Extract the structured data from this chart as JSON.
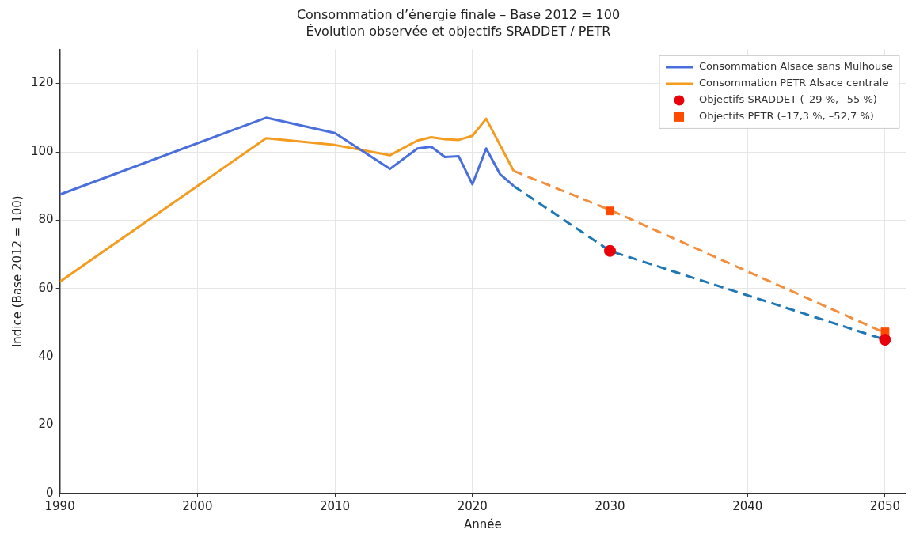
{
  "chart_data": {
    "type": "line",
    "title": "Consommation d’énergie finale – Base 2012 = 100",
    "subtitle": "Évolution observée et objectifs SRADDET / PETR",
    "xlabel": "Année",
    "ylabel": "Indice (Base 2012 = 100)",
    "xlim": [
      1990,
      2051.5
    ],
    "xticks": [
      1990,
      2000,
      2010,
      2020,
      2030,
      2040,
      2050
    ],
    "ylim": [
      0,
      130
    ],
    "yticks": [
      0,
      20,
      40,
      60,
      80,
      100,
      120
    ],
    "grid": true,
    "legend": "top right",
    "series": [
      {
        "name": "Consommation Alsace sans Mulhouse",
        "type": "line",
        "color": "#4a6fdc",
        "line_style": "solid",
        "marker": "none",
        "x": [
          1990,
          2005,
          2010,
          2014,
          2016,
          2017,
          2018,
          2019,
          2020,
          2021,
          2022,
          2023
        ],
        "values": [
          87.5,
          110,
          105.5,
          95,
          101,
          101.5,
          98.5,
          98.7,
          90.5,
          101,
          93.5,
          90
        ]
      },
      {
        "name": "Consommation PETR Alsace centrale",
        "type": "line",
        "color": "#f39c1f",
        "line_style": "solid",
        "marker": "none",
        "x": [
          1990,
          2005,
          2010,
          2014,
          2016,
          2017,
          2018,
          2019,
          2020,
          2021,
          2023
        ],
        "values": [
          62,
          104,
          102,
          99,
          103.3,
          104.3,
          103.7,
          103.5,
          104.7,
          109.7,
          94.4
        ]
      },
      {
        "type": "line",
        "color": "#1f77b4",
        "line_style": "dashed",
        "marker": "none",
        "x": [
          2023,
          2030,
          2050
        ],
        "values": [
          90,
          71,
          45
        ]
      },
      {
        "type": "line",
        "color": "#f28e3c",
        "line_style": "dashed",
        "marker": "none",
        "x": [
          2023,
          2030,
          2050
        ],
        "values": [
          94.4,
          83,
          47
        ]
      },
      {
        "name": "Objectifs SRADDET (–29 %, –55 %)",
        "type": "scatter",
        "color": "#e8000b",
        "marker": "circle",
        "x": [
          2030,
          2050
        ],
        "values": [
          71,
          45
        ]
      },
      {
        "name": "Objectifs PETR (–17,3 %, –52,7 %)",
        "type": "scatter",
        "color": "#ff4b00",
        "marker": "square",
        "x": [
          2030,
          2050
        ],
        "values": [
          82.7,
          47.3
        ]
      }
    ]
  }
}
